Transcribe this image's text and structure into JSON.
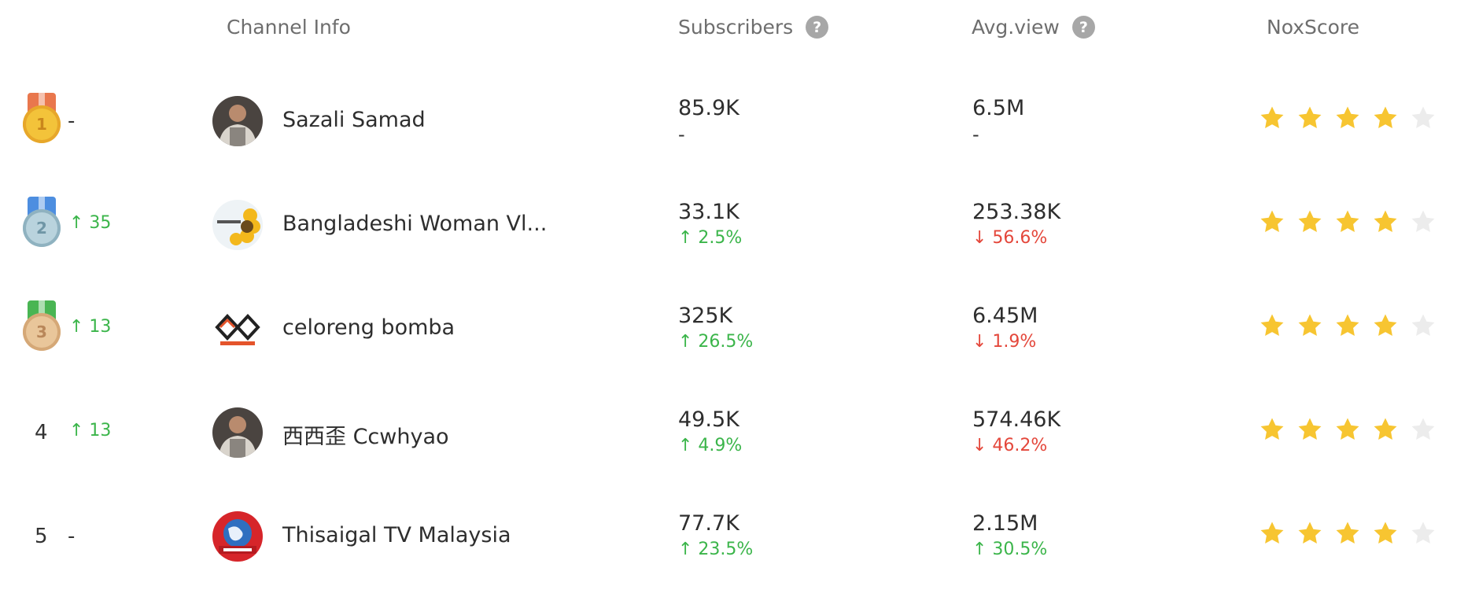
{
  "header": {
    "channel_info": "Channel Info",
    "subscribers": "Subscribers",
    "avg_view": "Avg.view",
    "noxscore": "NoxScore",
    "help_glyph": "?"
  },
  "colors": {
    "up": "#3bb54a",
    "down": "#e4473b",
    "star_filled": "#f7c531",
    "star_empty": "#ececec"
  },
  "rows": [
    {
      "rank": "1",
      "medal": "gold",
      "change": "-",
      "change_dir": "none",
      "name": "Sazali Samad",
      "avatar_icon": "person-photo-avatar",
      "subscribers": "85.9K",
      "sub_change": "-",
      "sub_dir": "none",
      "avg_view": "6.5M",
      "view_change": "-",
      "view_dir": "none",
      "stars": 4
    },
    {
      "rank": "2",
      "medal": "silver",
      "change": "↑ 35",
      "change_dir": "up",
      "name": "Bangladeshi Woman Vl...",
      "avatar_icon": "sunflower-avatar",
      "subscribers": "33.1K",
      "sub_change": "↑ 2.5%",
      "sub_dir": "up",
      "avg_view": "253.38K",
      "view_change": "↓ 56.6%",
      "view_dir": "down",
      "stars": 4
    },
    {
      "rank": "3",
      "medal": "bronze",
      "change": "↑ 13",
      "change_dir": "up",
      "name": "celoreng bomba",
      "avatar_icon": "celoreng-logo-avatar",
      "subscribers": "325K",
      "sub_change": "↑ 26.5%",
      "sub_dir": "up",
      "avg_view": "6.45M",
      "view_change": "↓ 1.9%",
      "view_dir": "down",
      "stars": 4
    },
    {
      "rank": "4",
      "medal": "",
      "change": "↑ 13",
      "change_dir": "up",
      "name": "西西歪 Ccwhyao",
      "avatar_icon": "person-photo-avatar",
      "subscribers": "49.5K",
      "sub_change": "↑ 4.9%",
      "sub_dir": "up",
      "avg_view": "574.46K",
      "view_change": "↓ 46.2%",
      "view_dir": "down",
      "stars": 4
    },
    {
      "rank": "5",
      "medal": "",
      "change": "-",
      "change_dir": "none",
      "name": "Thisaigal TV Malaysia",
      "avatar_icon": "globe-logo-avatar",
      "subscribers": "77.7K",
      "sub_change": "↑ 23.5%",
      "sub_dir": "up",
      "avg_view": "2.15M",
      "view_change": "↑ 30.5%",
      "view_dir": "up",
      "stars": 4
    }
  ]
}
